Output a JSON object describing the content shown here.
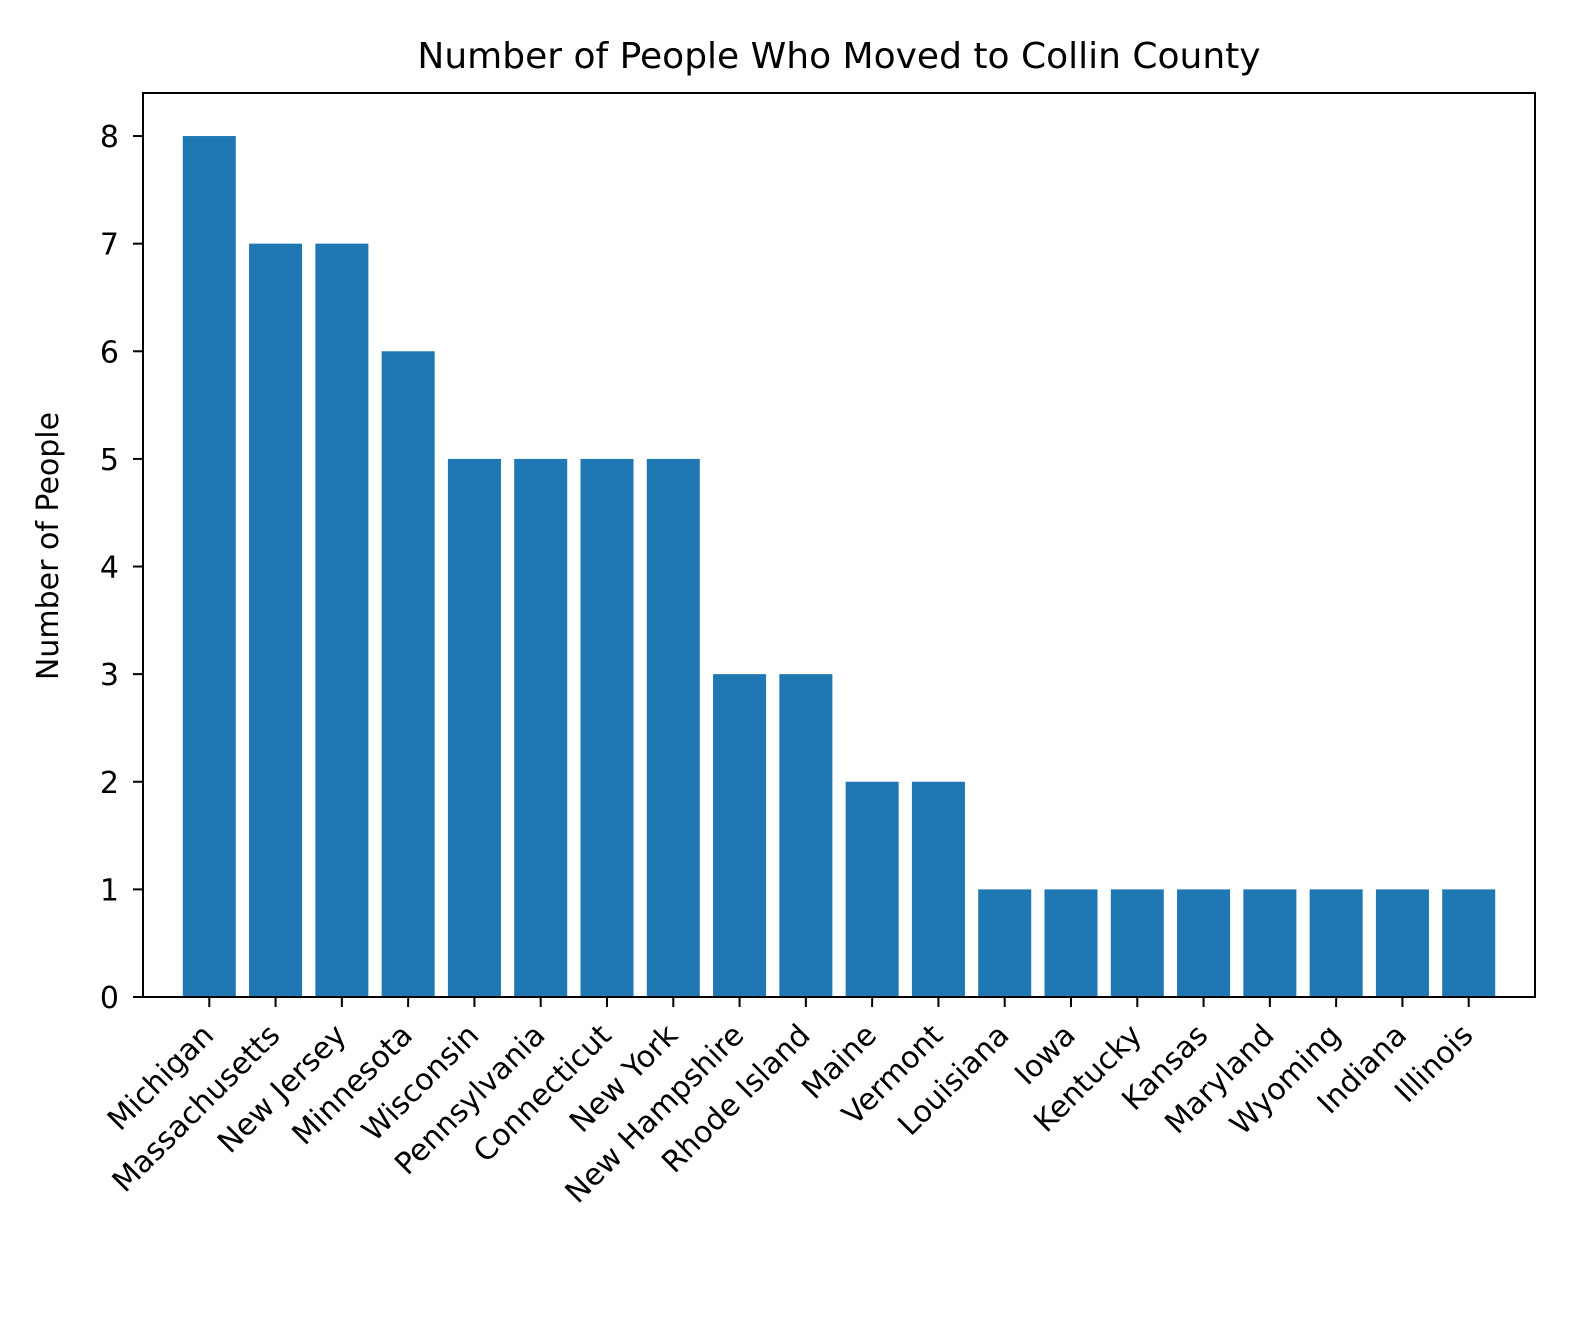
{
  "chart_data": {
    "type": "bar",
    "title": "Number of People Who Moved to Collin County",
    "xlabel": "",
    "ylabel": "Number of People",
    "categories": [
      "Michigan",
      "Massachusetts",
      "New Jersey",
      "Minnesota",
      "Wisconsin",
      "Pennsylvania",
      "Connecticut",
      "New York",
      "New Hampshire",
      "Rhode Island",
      "Maine",
      "Vermont",
      "Louisiana",
      "Iowa",
      "Kentucky",
      "Kansas",
      "Maryland",
      "Wyoming",
      "Indiana",
      "Illinois"
    ],
    "values": [
      8,
      7,
      7,
      6,
      5,
      5,
      5,
      5,
      3,
      3,
      2,
      2,
      1,
      1,
      1,
      1,
      1,
      1,
      1,
      1
    ],
    "ylim": [
      0,
      8.4
    ],
    "yticks": [
      0,
      1,
      2,
      3,
      4,
      5,
      6,
      7,
      8
    ],
    "bar_color": "#1f77b4",
    "grid": false,
    "legend": "none"
  }
}
